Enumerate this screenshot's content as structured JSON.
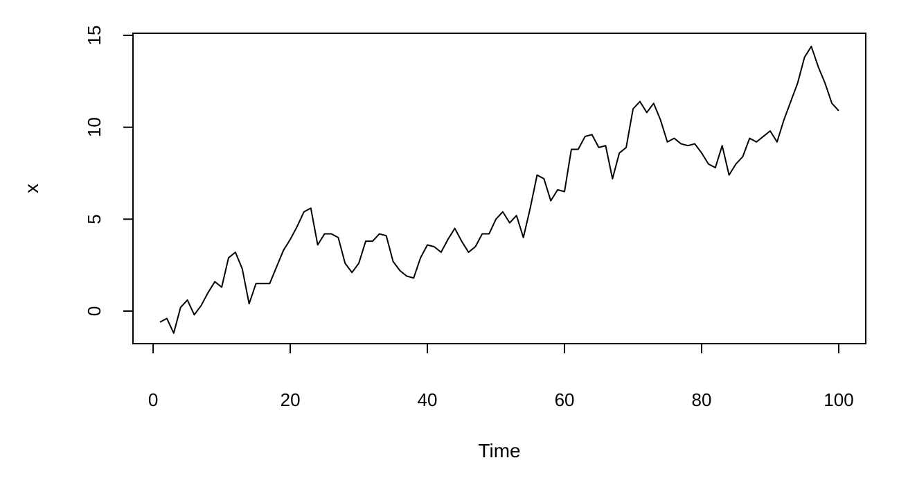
{
  "chart_data": {
    "type": "line",
    "title": "",
    "xlabel": "Time",
    "ylabel": "x",
    "xlim": [
      1,
      100
    ],
    "ylim": [
      -2,
      15
    ],
    "x_ticks": [
      0,
      20,
      40,
      60,
      80,
      100
    ],
    "y_ticks": [
      0,
      5,
      10,
      15
    ],
    "x_tick_labels": [
      "0",
      "20",
      "40",
      "60",
      "80",
      "100"
    ],
    "y_tick_labels": [
      "0",
      "5",
      "10",
      "15"
    ],
    "grid": false,
    "series": [
      {
        "values": [
          -0.6,
          -0.4,
          -1.2,
          0.2,
          0.6,
          -0.2,
          0.3,
          1.0,
          1.6,
          1.3,
          2.9,
          3.2,
          2.3,
          0.4,
          1.5,
          1.5,
          1.5,
          2.4,
          3.3,
          3.9,
          4.6,
          5.4,
          5.6,
          3.6,
          4.2,
          4.2,
          4.0,
          2.6,
          2.1,
          2.6,
          3.8,
          3.8,
          4.2,
          4.1,
          2.7,
          2.2,
          1.9,
          1.8,
          2.9,
          3.6,
          3.5,
          3.2,
          3.9,
          4.5,
          3.8,
          3.2,
          3.5,
          4.2,
          4.2,
          5.0,
          5.4,
          4.8,
          5.2,
          4.0,
          5.6,
          7.4,
          7.2,
          6.0,
          6.6,
          6.5,
          8.8,
          8.8,
          9.5,
          9.6,
          8.9,
          9.0,
          7.2,
          8.6,
          8.9,
          11.0,
          11.4,
          10.8,
          11.3,
          10.4,
          9.2,
          9.4,
          9.1,
          9.0,
          9.1,
          8.6,
          8.0,
          7.8,
          9.0,
          7.4,
          8.0,
          8.4,
          9.4,
          9.2,
          9.5,
          9.8,
          9.2,
          10.4,
          11.4,
          12.4,
          13.8,
          14.4,
          13.3,
          12.4,
          11.3,
          10.9
        ]
      }
    ]
  }
}
